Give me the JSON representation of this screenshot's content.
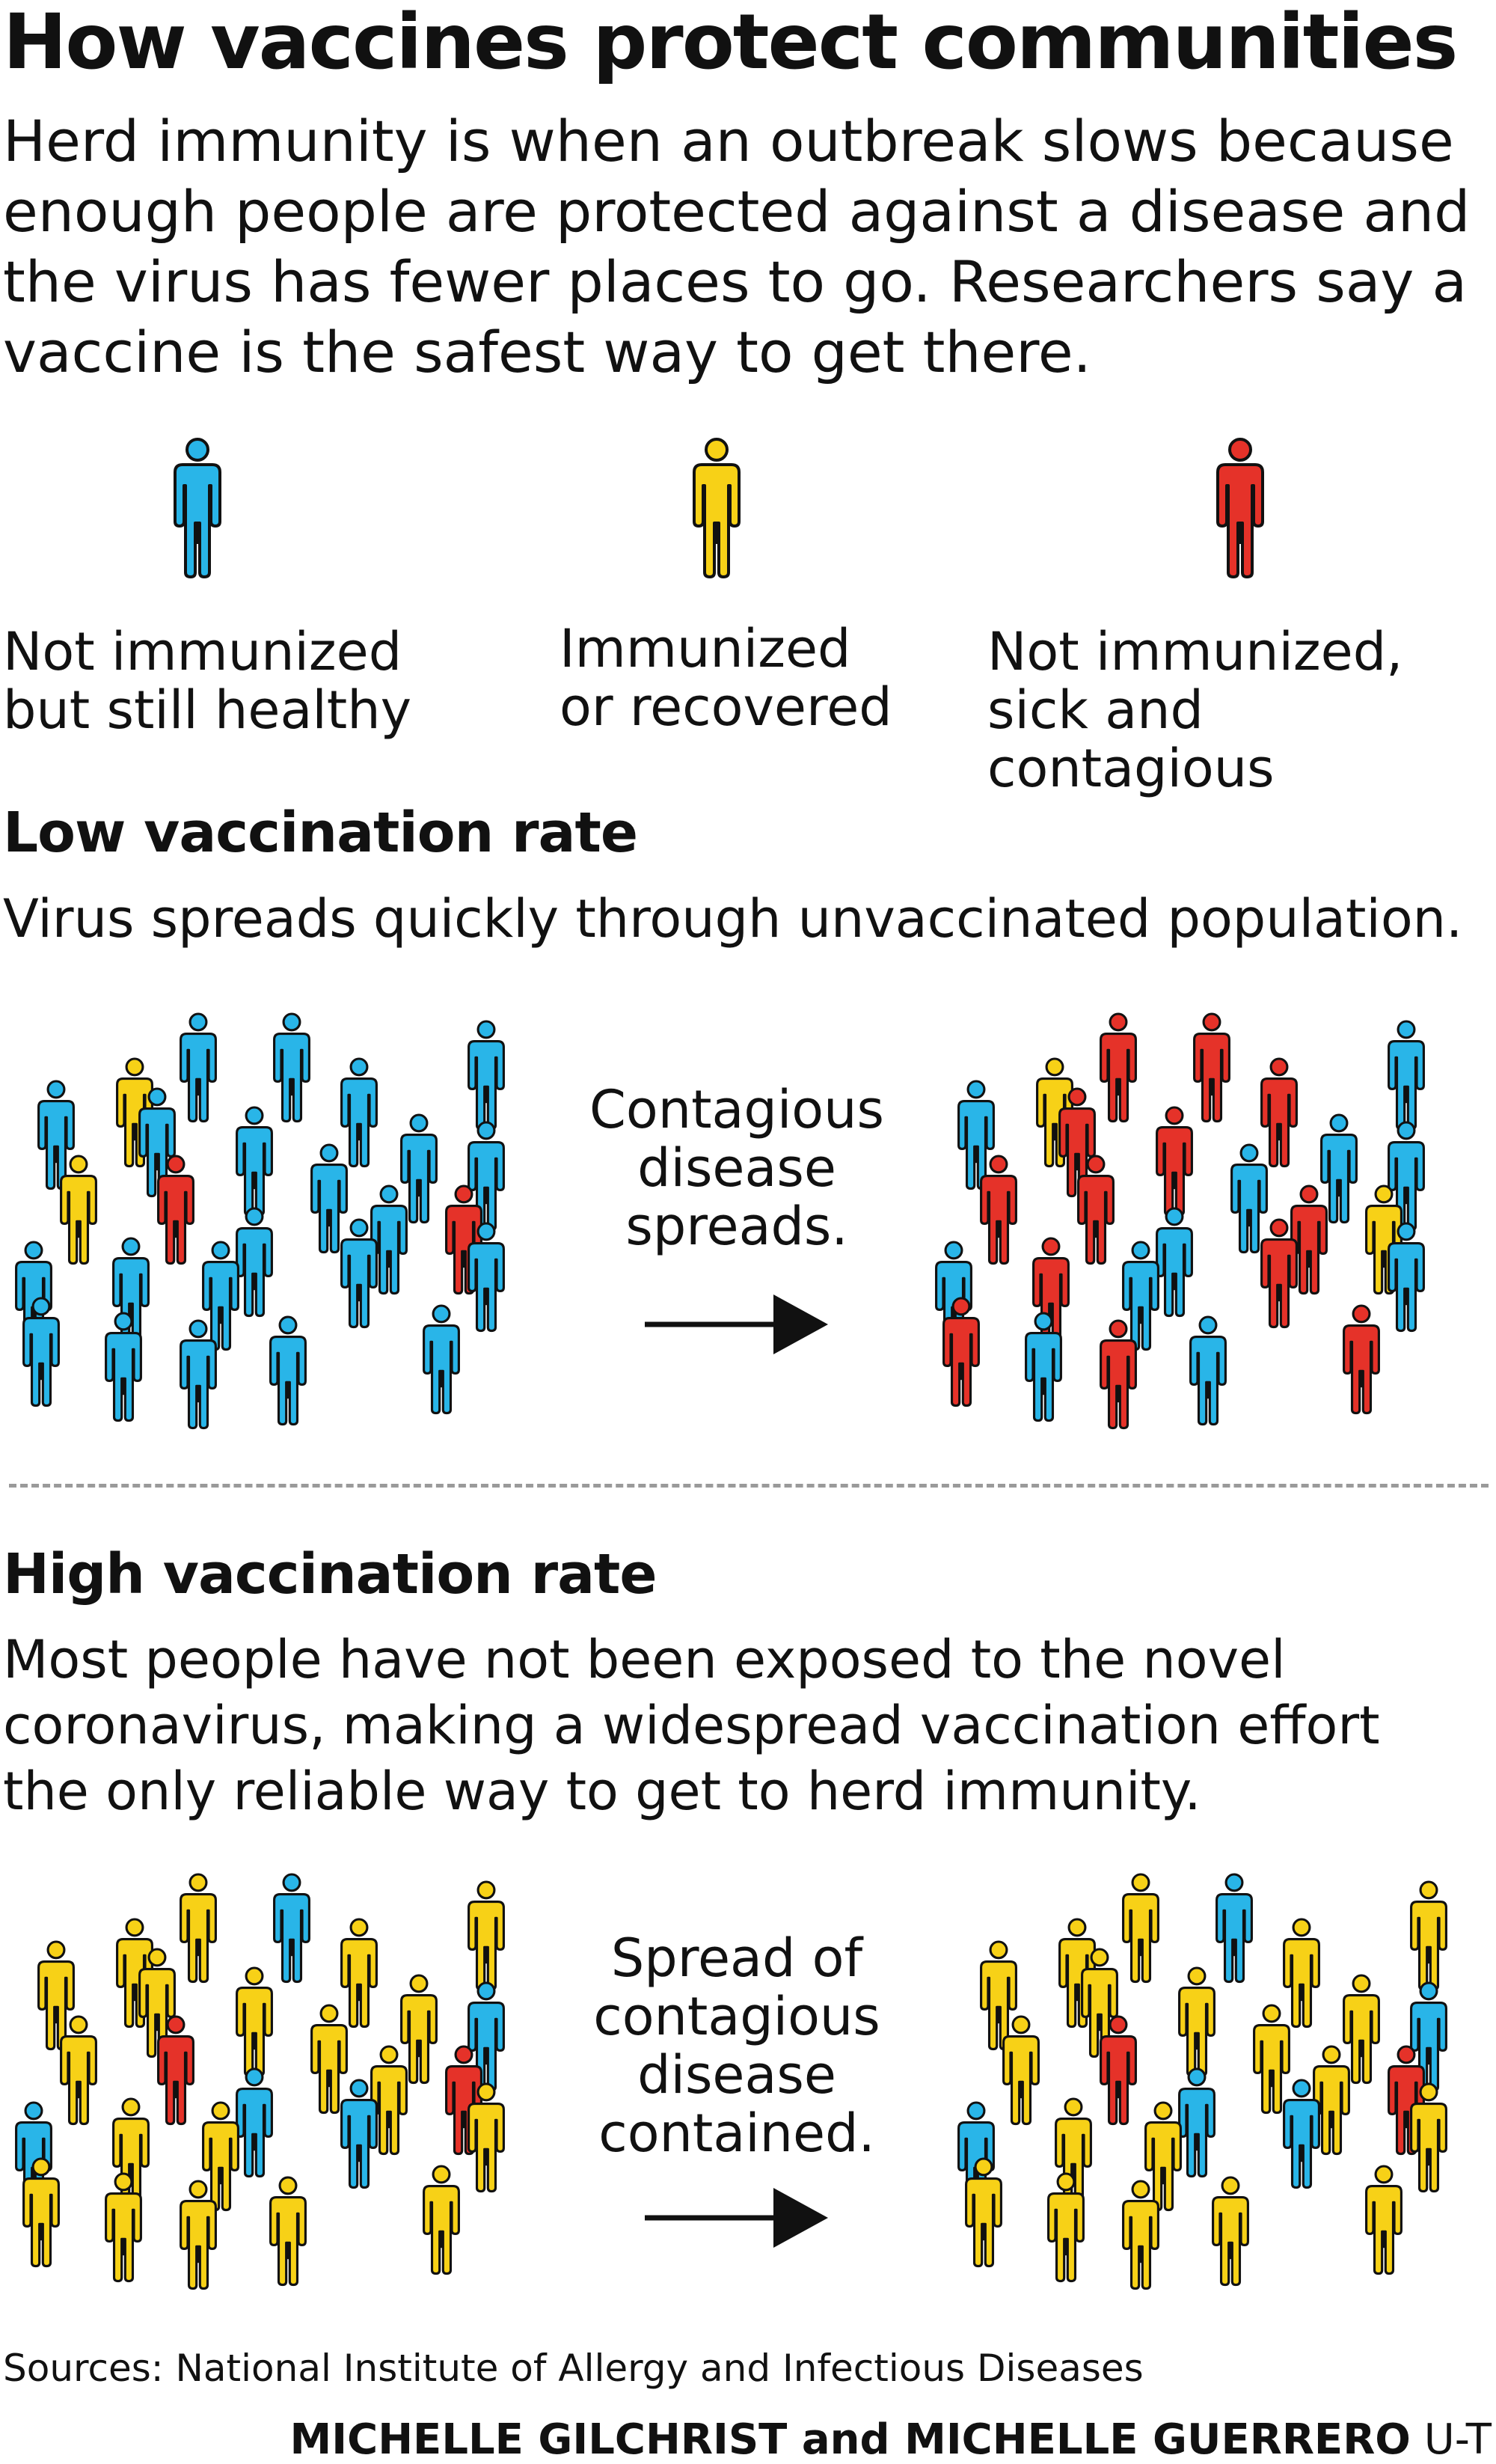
{
  "title": "How vaccines protect communities",
  "intro": "Herd immunity is when an outbreak slows because\nenough people are protected against a disease and\nthe virus has fewer places to go. Researchers say a\nvaccine is the safest way to get there.",
  "colors": {
    "not_immunized": "#29b5e8",
    "immunized": "#f7d117",
    "sick": "#e53229",
    "outline": "#111111"
  },
  "legend": [
    {
      "color_key": "not_immunized",
      "label": "Not immunized\nbut still healthy"
    },
    {
      "color_key": "immunized",
      "label": "Immunized\nor recovered"
    },
    {
      "color_key": "sick",
      "label": "Not immunized,\nsick and contagious"
    }
  ],
  "low": {
    "title": "Low vaccination rate",
    "desc": "Virus spreads quickly through unvaccinated population.",
    "arrow_text": "Contagious\ndisease\nspreads.",
    "before": [
      "B",
      "B",
      "B",
      "Y",
      "B",
      "B",
      "B",
      "B",
      "B",
      "B",
      "Y",
      "R",
      "B",
      "B",
      "B",
      "R",
      "B",
      "B",
      "B",
      "B",
      "B",
      "B",
      "B",
      "B",
      "B",
      "B"
    ],
    "after": [
      "R",
      "R",
      "B",
      "Y",
      "R",
      "B",
      "R",
      "R",
      "B",
      "B",
      "R",
      "R",
      "B",
      "B",
      "R",
      "Y",
      "B",
      "R",
      "B",
      "R",
      "B",
      "R",
      "B",
      "R",
      "B",
      "R"
    ]
  },
  "high": {
    "title": "High vaccination rate",
    "desc": "Most people have not been exposed to the novel\ncoronavirus, making a widespread vaccination effort\nthe only reliable way to get to herd immunity.",
    "arrow_text": "Spread of\ncontagious\ndisease\ncontained.",
    "before": [
      "Y",
      "B",
      "Y",
      "Y",
      "Y",
      "Y",
      "Y",
      "Y",
      "Y",
      "B",
      "Y",
      "R",
      "Y",
      "B",
      "Y",
      "R",
      "B",
      "Y",
      "Y",
      "B",
      "Y",
      "Y",
      "Y",
      "Y",
      "Y",
      "Y"
    ],
    "after": [
      "Y",
      "B",
      "Y",
      "Y",
      "Y",
      "Y",
      "Y",
      "Y",
      "Y",
      "B",
      "Y",
      "R",
      "Y",
      "B",
      "Y",
      "R",
      "B",
      "Y",
      "Y",
      "B",
      "Y",
      "Y",
      "Y",
      "Y",
      "Y",
      "Y"
    ]
  },
  "sources": "Sources: National Institute of Allergy and Infectious Diseases",
  "credit": {
    "authors": "MICHELLE GILCHRIST and MICHELLE GUERRERO",
    "org": "U-T"
  }
}
